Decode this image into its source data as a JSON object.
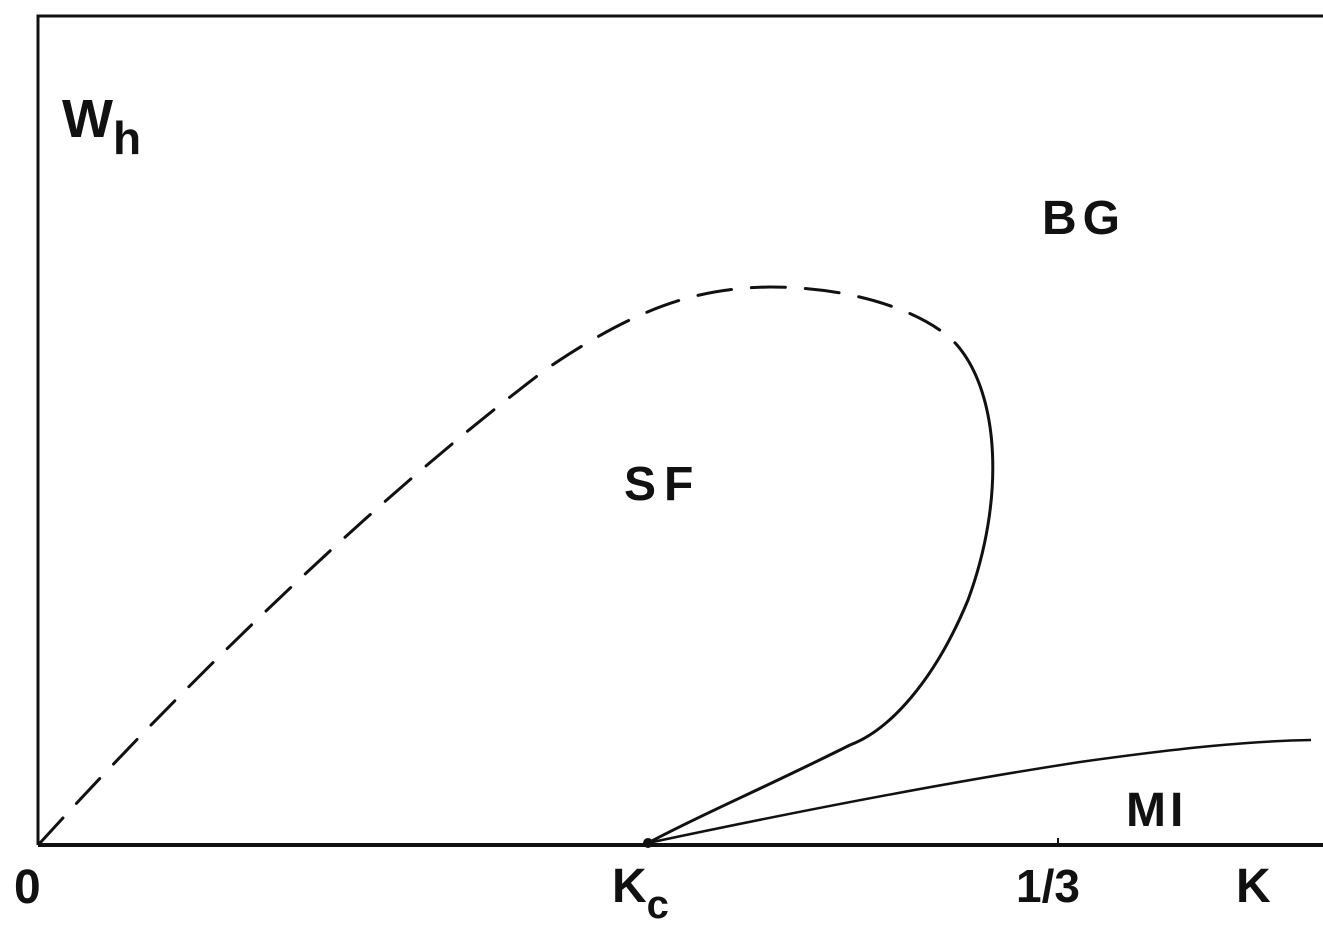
{
  "diagram": {
    "y_axis_label": {
      "main": "W",
      "subscript": "h"
    },
    "x_axis_label": "K",
    "x_ticks": {
      "zero": "0",
      "kc_main": "K",
      "kc_subscript": "c",
      "third": "1/3"
    },
    "regions": {
      "bg": "BG",
      "sf": "SF",
      "mi": "MI"
    },
    "line_color": "#111111",
    "background_color": "#ffffff"
  }
}
